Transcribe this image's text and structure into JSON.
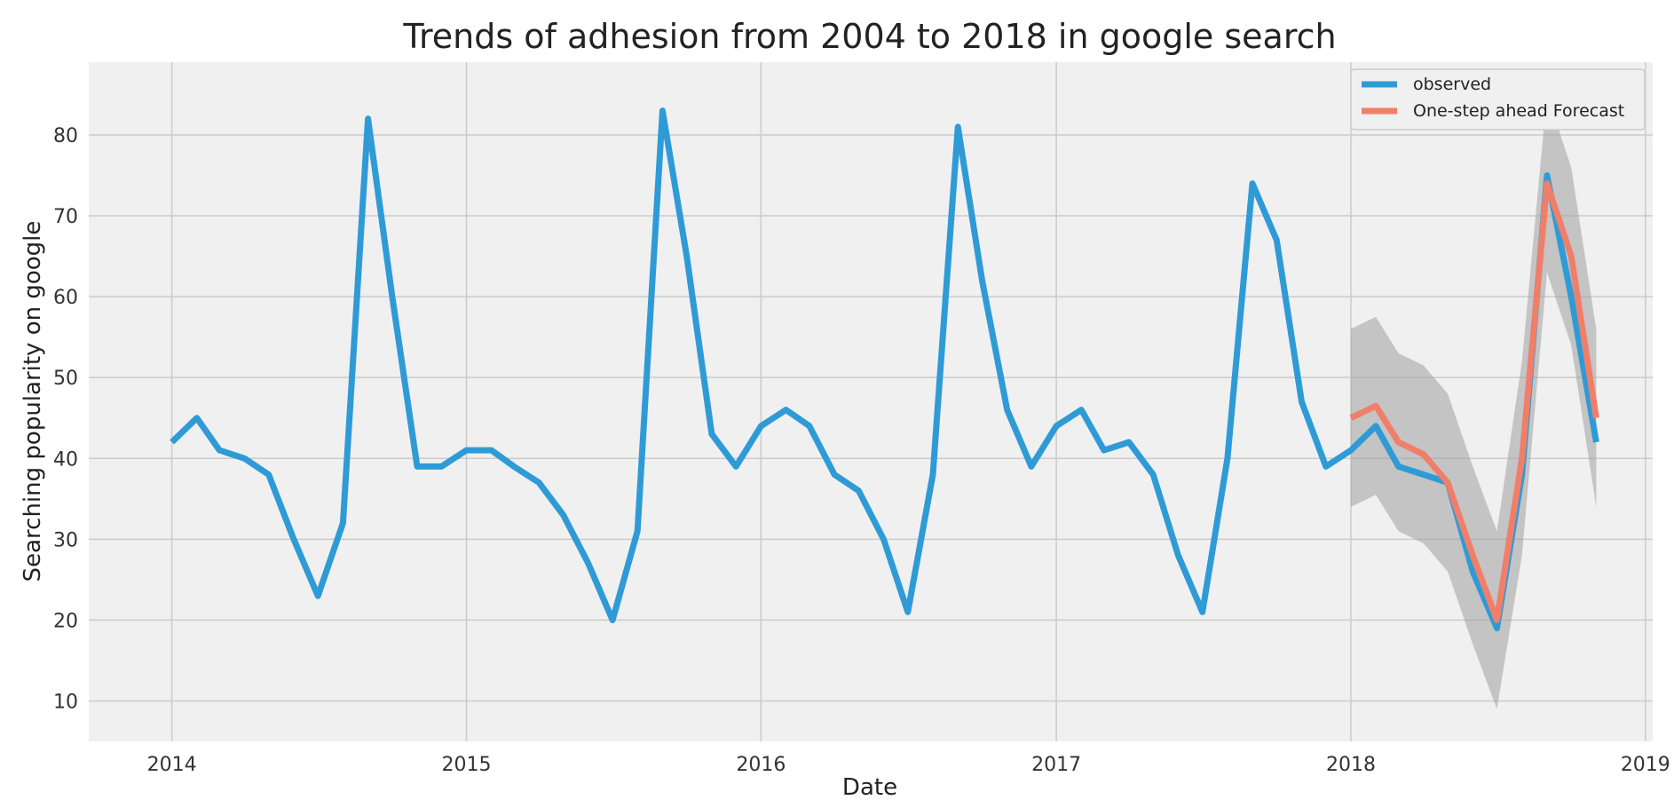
{
  "chart_data": {
    "type": "line",
    "title": "Trends of adhesion from 2004 to 2018 in google search",
    "xlabel": "Date",
    "ylabel": "Searching popularity on google",
    "xlim": [
      "2013-09-20",
      "2019-01-10"
    ],
    "ylim": [
      5,
      89
    ],
    "x_ticks": [
      "2014",
      "2015",
      "2016",
      "2017",
      "2018",
      "2019"
    ],
    "y_ticks": [
      10,
      20,
      30,
      40,
      50,
      60,
      70,
      80
    ],
    "grid": true,
    "legend_position": "top-right",
    "colors": {
      "observed": "#2f9bd6",
      "forecast": "#f07f6a",
      "confidence": "#a0a0a0",
      "background": "#f0f0f0",
      "grid": "#cbcbcb"
    },
    "series": [
      {
        "name": "observed",
        "x": [
          "2014-01",
          "2014-02",
          "2014-03",
          "2014-04",
          "2014-05",
          "2014-06",
          "2014-07",
          "2014-08",
          "2014-09",
          "2014-10",
          "2014-11",
          "2014-12",
          "2015-01",
          "2015-02",
          "2015-03",
          "2015-04",
          "2015-05",
          "2015-06",
          "2015-07",
          "2015-08",
          "2015-09",
          "2015-10",
          "2015-11",
          "2015-12",
          "2016-01",
          "2016-02",
          "2016-03",
          "2016-04",
          "2016-05",
          "2016-06",
          "2016-07",
          "2016-08",
          "2016-09",
          "2016-10",
          "2016-11",
          "2016-12",
          "2017-01",
          "2017-02",
          "2017-03",
          "2017-04",
          "2017-05",
          "2017-06",
          "2017-07",
          "2017-08",
          "2017-09",
          "2017-10",
          "2017-11",
          "2017-12",
          "2018-01",
          "2018-02",
          "2018-03",
          "2018-04",
          "2018-05",
          "2018-06",
          "2018-07",
          "2018-08",
          "2018-09",
          "2018-10",
          "2018-11"
        ],
        "values": [
          42,
          45,
          41,
          40,
          38,
          30,
          23,
          32,
          82,
          60,
          39,
          39,
          41,
          41,
          39,
          37,
          33,
          27,
          20,
          31,
          83,
          65,
          43,
          39,
          44,
          46,
          44,
          38,
          36,
          30,
          21,
          38,
          81,
          62,
          46,
          39,
          44,
          46,
          41,
          42,
          38,
          28,
          21,
          40,
          74,
          67,
          47,
          39,
          41,
          44,
          39,
          38,
          37,
          26,
          19,
          38,
          75,
          60,
          42
        ]
      },
      {
        "name": "One-step ahead Forecast",
        "x": [
          "2018-01",
          "2018-02",
          "2018-03",
          "2018-04",
          "2018-05",
          "2018-06",
          "2018-07",
          "2018-08",
          "2018-09",
          "2018-10",
          "2018-11"
        ],
        "values": [
          45,
          46.5,
          42,
          40.5,
          37,
          28,
          20,
          40,
          74,
          65,
          45
        ],
        "lower": [
          34,
          35.5,
          31,
          29.5,
          26,
          17,
          9,
          28,
          63,
          54,
          34
        ],
        "upper": [
          56,
          57.5,
          53,
          51.5,
          48,
          39,
          31,
          52,
          85,
          76,
          56
        ]
      }
    ]
  }
}
